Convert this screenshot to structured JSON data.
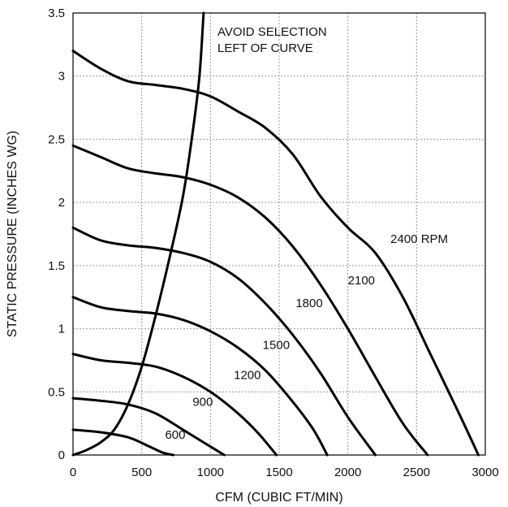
{
  "chart_data": {
    "type": "line",
    "title": "",
    "xlabel": "CFM (CUBIC FT/MIN)",
    "ylabel": "STATIC PRESSURE (INCHES WG)",
    "xlim": [
      0,
      3000
    ],
    "ylim": [
      0,
      3.5
    ],
    "x_ticks": [
      "0",
      "500",
      "1000",
      "1500",
      "2000",
      "2500",
      "3000"
    ],
    "y_ticks": [
      "0",
      "0.5",
      "1",
      "1.5",
      "2",
      "2.5",
      "3",
      "3.5"
    ],
    "grid": true,
    "annotations": [
      "AVOID SELECTION",
      "LEFT OF CURVE"
    ],
    "series": [
      {
        "name": "600",
        "label": "600",
        "label_at": [
          670,
          0.13
        ],
        "points": [
          [
            0,
            0.2
          ],
          [
            200,
            0.18
          ],
          [
            400,
            0.14
          ],
          [
            550,
            0.07
          ],
          [
            650,
            0.02
          ],
          [
            730,
            0
          ]
        ]
      },
      {
        "name": "900",
        "label": "900",
        "label_at": [
          870,
          0.39
        ],
        "points": [
          [
            0,
            0.45
          ],
          [
            200,
            0.43
          ],
          [
            400,
            0.4
          ],
          [
            600,
            0.33
          ],
          [
            800,
            0.2
          ],
          [
            950,
            0.1
          ],
          [
            1100,
            0
          ]
        ]
      },
      {
        "name": "1200",
        "label": "1200",
        "label_at": [
          1170,
          0.6
        ],
        "points": [
          [
            0,
            0.8
          ],
          [
            200,
            0.75
          ],
          [
            400,
            0.73
          ],
          [
            600,
            0.7
          ],
          [
            800,
            0.62
          ],
          [
            1000,
            0.5
          ],
          [
            1200,
            0.33
          ],
          [
            1350,
            0.17
          ],
          [
            1480,
            0
          ]
        ]
      },
      {
        "name": "1500",
        "label": "1500",
        "label_at": [
          1380,
          0.84
        ],
        "points": [
          [
            0,
            1.25
          ],
          [
            200,
            1.17
          ],
          [
            400,
            1.14
          ],
          [
            600,
            1.12
          ],
          [
            800,
            1.07
          ],
          [
            1000,
            0.98
          ],
          [
            1200,
            0.85
          ],
          [
            1400,
            0.67
          ],
          [
            1600,
            0.42
          ],
          [
            1750,
            0.2
          ],
          [
            1850,
            0
          ]
        ]
      },
      {
        "name": "1800",
        "label": "1800",
        "label_at": [
          1620,
          1.17
        ],
        "points": [
          [
            0,
            1.8
          ],
          [
            200,
            1.7
          ],
          [
            400,
            1.66
          ],
          [
            600,
            1.64
          ],
          [
            800,
            1.6
          ],
          [
            1000,
            1.53
          ],
          [
            1200,
            1.4
          ],
          [
            1400,
            1.2
          ],
          [
            1600,
            0.95
          ],
          [
            1800,
            0.65
          ],
          [
            2000,
            0.3
          ],
          [
            2200,
            0
          ]
        ]
      },
      {
        "name": "2100",
        "label": "2100",
        "label_at": [
          2000,
          1.35
        ],
        "points": [
          [
            0,
            2.45
          ],
          [
            200,
            2.36
          ],
          [
            400,
            2.27
          ],
          [
            600,
            2.23
          ],
          [
            800,
            2.2
          ],
          [
            1000,
            2.14
          ],
          [
            1200,
            2.04
          ],
          [
            1400,
            1.88
          ],
          [
            1600,
            1.65
          ],
          [
            1800,
            1.35
          ],
          [
            2000,
            1.0
          ],
          [
            2200,
            0.62
          ],
          [
            2400,
            0.25
          ],
          [
            2580,
            0
          ]
        ]
      },
      {
        "name": "2400 RPM",
        "label": "2400 RPM",
        "label_at": [
          2310,
          1.68
        ],
        "points": [
          [
            0,
            3.2
          ],
          [
            200,
            3.06
          ],
          [
            400,
            2.96
          ],
          [
            600,
            2.93
          ],
          [
            800,
            2.9
          ],
          [
            1000,
            2.84
          ],
          [
            1200,
            2.72
          ],
          [
            1400,
            2.59
          ],
          [
            1600,
            2.38
          ],
          [
            1800,
            2.05
          ],
          [
            2000,
            1.8
          ],
          [
            2200,
            1.6
          ],
          [
            2400,
            1.25
          ],
          [
            2600,
            0.8
          ],
          [
            2800,
            0.35
          ],
          [
            2950,
            0
          ]
        ]
      }
    ],
    "surge_line": {
      "name": "",
      "points": [
        [
          0,
          0
        ],
        [
          100,
          0.04
        ],
        [
          200,
          0.1
        ],
        [
          300,
          0.2
        ],
        [
          400,
          0.4
        ],
        [
          500,
          0.7
        ],
        [
          600,
          1.1
        ],
        [
          700,
          1.55
        ],
        [
          800,
          2.05
        ],
        [
          870,
          2.55
        ],
        [
          920,
          3.0
        ],
        [
          950,
          3.5
        ]
      ]
    }
  }
}
